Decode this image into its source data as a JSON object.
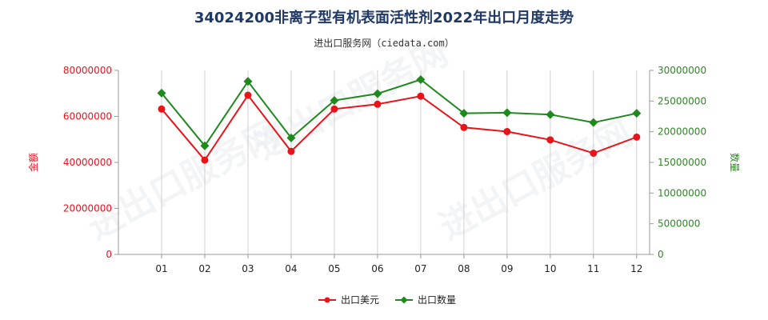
{
  "colors": {
    "amount": "#e8141a",
    "quantity": "#1e8a1e",
    "grid": "#d0d0d0",
    "axis": "#999999"
  },
  "watermark": "进出口服务网",
  "chart_data": {
    "type": "line",
    "title": "34024200非离子型有机表面活性剂2022年出口月度走势",
    "subtitle": "进出口服务网（ciedata.com）",
    "categories": [
      "01",
      "02",
      "03",
      "04",
      "05",
      "06",
      "07",
      "08",
      "09",
      "10",
      "11",
      "12"
    ],
    "ylabel_left": "金额",
    "ylabel_right": "数量",
    "ylim_left": [
      0,
      80000000
    ],
    "ylim_right": [
      0,
      30000000
    ],
    "yticks_left": [
      "0",
      "20000000",
      "40000000",
      "60000000",
      "80000000"
    ],
    "yticks_right": [
      "0",
      "5000000",
      "10000000",
      "15000000",
      "20000000",
      "25000000",
      "30000000"
    ],
    "grid": "vertical",
    "legend_position": "bottom",
    "series": [
      {
        "name": "出口美元",
        "axis": "left",
        "color": "#e8141a",
        "marker": "circle",
        "values": [
          63200000,
          41000000,
          69200000,
          44800000,
          63200000,
          65300000,
          68800000,
          55200000,
          53400000,
          49800000,
          44000000,
          51000000
        ]
      },
      {
        "name": "出口数量",
        "axis": "right",
        "color": "#1e8a1e",
        "marker": "diamond",
        "values": [
          26300000,
          17700000,
          28200000,
          19000000,
          25100000,
          26200000,
          28500000,
          23000000,
          23100000,
          22800000,
          21500000,
          23000000
        ]
      }
    ]
  }
}
